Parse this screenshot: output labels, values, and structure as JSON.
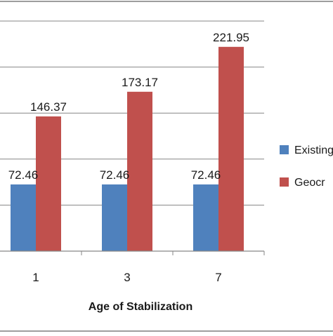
{
  "chart_data": {
    "type": "bar",
    "title": "",
    "xlabel": "Age of Stabilization",
    "ylabel": "",
    "categories": [
      "1",
      "3",
      "7"
    ],
    "series": [
      {
        "name": "Existing",
        "legend_label": "Existing",
        "color": "#4f81bd",
        "values": [
          72.46,
          72.46,
          72.46
        ],
        "labels": [
          "72.46",
          "72.46",
          "72.46"
        ],
        "category_labels": [
          "72.46",
          "72.46",
          "72.46"
        ]
      },
      {
        "name": "Geocr",
        "legend_label": "Geocr",
        "color": "#c0504d",
        "values": [
          146.37,
          173.17,
          221.95
        ],
        "labels": [
          "146.37",
          "173.17",
          "221.95"
        ]
      }
    ],
    "ylim": [
      0,
      250
    ],
    "grid": true,
    "legend_position": "right"
  }
}
